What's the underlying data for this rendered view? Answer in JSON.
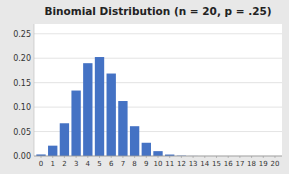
{
  "chart_data": {
    "type": "bar",
    "title": "Binomial Distribution (n = 20, p = .25)",
    "x": [
      0,
      1,
      2,
      3,
      4,
      5,
      6,
      7,
      8,
      9,
      10,
      11,
      12,
      13,
      14,
      15,
      16,
      17,
      18,
      19,
      20
    ],
    "values": [
      0.003171,
      0.021141,
      0.066948,
      0.133896,
      0.189848,
      0.202437,
      0.168697,
      0.112465,
      0.060944,
      0.027086,
      0.009928,
      0.002985,
      0.000737,
      0.000148,
      2.4e-05,
      3e-06,
      0.0,
      0.0,
      0.0,
      0.0,
      0.0
    ],
    "color": "#4472C4",
    "xlim": [
      -0.6,
      20.6
    ],
    "xticks": [
      0,
      1,
      2,
      3,
      4,
      5,
      6,
      7,
      8,
      9,
      10,
      11,
      12,
      13,
      14,
      15,
      16,
      17,
      18,
      19,
      20
    ],
    "ylim": [
      0,
      0.27
    ],
    "yticks": [
      {
        "value": 0.0,
        "label": "0.00"
      },
      0.05,
      {
        "value": 0.1,
        "label": "0.10"
      },
      0.15,
      {
        "value": 0.2,
        "label": "0.20"
      },
      0.25
    ],
    "grid": true
  }
}
